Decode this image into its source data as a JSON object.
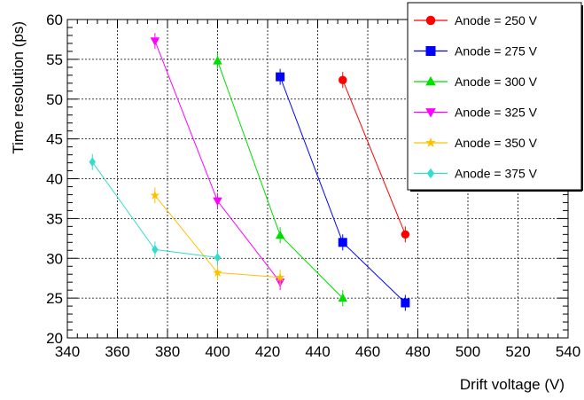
{
  "chart_data": {
    "type": "line",
    "title": "",
    "xlabel": "Drift voltage (V)",
    "ylabel": "Time resolution (ps)",
    "xlim": [
      340,
      540
    ],
    "ylim": [
      20,
      60
    ],
    "x_ticks": [
      340,
      360,
      380,
      400,
      420,
      440,
      460,
      480,
      500,
      520,
      540
    ],
    "y_ticks": [
      20,
      25,
      30,
      35,
      40,
      45,
      50,
      55,
      60
    ],
    "grid": true,
    "legend_position": "top-right",
    "series": [
      {
        "name": "Anode = 250 V",
        "color": "#ff0000",
        "marker": "circle",
        "x": [
          450,
          475
        ],
        "y": [
          52.4,
          33.0
        ]
      },
      {
        "name": "Anode = 275 V",
        "color": "#0000ff",
        "marker": "square",
        "x": [
          425,
          450,
          475
        ],
        "y": [
          52.8,
          32.0,
          24.4
        ]
      },
      {
        "name": "Anode = 300 V",
        "color": "#00dd00",
        "marker": "triangle-up",
        "x": [
          400,
          425,
          450
        ],
        "y": [
          54.8,
          32.9,
          25.0
        ]
      },
      {
        "name": "Anode = 325 V",
        "color": "#ff00ff",
        "marker": "triangle-down",
        "x": [
          375,
          400,
          425
        ],
        "y": [
          57.3,
          37.2,
          27.0
        ]
      },
      {
        "name": "Anode = 350 V",
        "color": "#ffc000",
        "marker": "star",
        "x": [
          375,
          400,
          425
        ],
        "y": [
          37.9,
          28.2,
          27.6
        ]
      },
      {
        "name": "Anode = 375 V",
        "color": "#33ddcc",
        "marker": "diamond",
        "x": [
          350,
          375,
          400
        ],
        "y": [
          42.1,
          31.1,
          30.1
        ]
      }
    ]
  }
}
